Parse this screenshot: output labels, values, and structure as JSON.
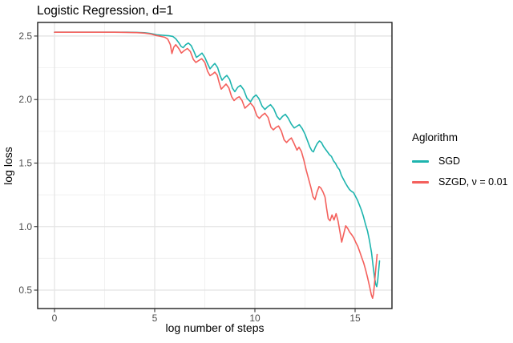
{
  "chart_data": {
    "type": "line",
    "title": "Logistic Regression, d=1",
    "xlabel": "log number of steps",
    "ylabel": "log loss",
    "xlim": [
      -0.84,
      16.84
    ],
    "ylim": [
      0.355,
      2.607
    ],
    "grid": true,
    "x_ticks": {
      "values": [
        0,
        5,
        10,
        15
      ],
      "labels": [
        "0",
        "5",
        "10",
        "15"
      ]
    },
    "y_ticks": {
      "values": [
        0.5,
        1.0,
        1.5,
        2.0,
        2.5
      ],
      "labels": [
        "0.5",
        "1.0",
        "1.5",
        "2.0",
        "2.5"
      ]
    },
    "x_minor": [
      2.5,
      7.5,
      12.5
    ],
    "y_minor": [
      0.75,
      1.25,
      1.75,
      2.25
    ],
    "legend": {
      "title": "Aglorithm",
      "position": "right"
    },
    "colors": {
      "background": "#ffffff",
      "panel_border": "#1f1f1f",
      "grid_major": "#e4e4e4",
      "grid_minor": "#f0f0f0",
      "tick": "#333333",
      "tick_label": "#4d4d4d",
      "text": "#000000"
    },
    "series": [
      {
        "name": "SGD",
        "color": "#1eb4ae",
        "points": [
          [
            0,
            2.53
          ],
          [
            0.6,
            2.53
          ],
          [
            1.2,
            2.53
          ],
          [
            1.8,
            2.53
          ],
          [
            2.4,
            2.53
          ],
          [
            3,
            2.53
          ],
          [
            3.6,
            2.53
          ],
          [
            4.1,
            2.529
          ],
          [
            4.5,
            2.526
          ],
          [
            4.8,
            2.52
          ],
          [
            5.1,
            2.51
          ],
          [
            5.4,
            2.506
          ],
          [
            5.7,
            2.502
          ],
          [
            5.9,
            2.497
          ],
          [
            6.05,
            2.478
          ],
          [
            6.2,
            2.448
          ],
          [
            6.32,
            2.418
          ],
          [
            6.42,
            2.408
          ],
          [
            6.55,
            2.432
          ],
          [
            6.68,
            2.445
          ],
          [
            6.82,
            2.425
          ],
          [
            6.96,
            2.378
          ],
          [
            7.08,
            2.332
          ],
          [
            7.22,
            2.348
          ],
          [
            7.36,
            2.366
          ],
          [
            7.5,
            2.332
          ],
          [
            7.64,
            2.282
          ],
          [
            7.76,
            2.242
          ],
          [
            7.9,
            2.268
          ],
          [
            8.0,
            2.284
          ],
          [
            8.14,
            2.252
          ],
          [
            8.26,
            2.19
          ],
          [
            8.36,
            2.152
          ],
          [
            8.48,
            2.174
          ],
          [
            8.6,
            2.19
          ],
          [
            8.74,
            2.158
          ],
          [
            8.88,
            2.09
          ],
          [
            9.0,
            2.062
          ],
          [
            9.14,
            2.096
          ],
          [
            9.28,
            2.112
          ],
          [
            9.44,
            2.078
          ],
          [
            9.6,
            2.012
          ],
          [
            9.78,
            1.982
          ],
          [
            9.92,
            2.018
          ],
          [
            10.06,
            2.036
          ],
          [
            10.2,
            2.008
          ],
          [
            10.36,
            1.948
          ],
          [
            10.5,
            1.922
          ],
          [
            10.64,
            1.944
          ],
          [
            10.78,
            1.96
          ],
          [
            10.94,
            1.928
          ],
          [
            11.1,
            1.868
          ],
          [
            11.24,
            1.842
          ],
          [
            11.38,
            1.868
          ],
          [
            11.52,
            1.884
          ],
          [
            11.66,
            1.854
          ],
          [
            11.82,
            1.806
          ],
          [
            11.96,
            1.776
          ],
          [
            12.1,
            1.79
          ],
          [
            12.22,
            1.802
          ],
          [
            12.36,
            1.772
          ],
          [
            12.5,
            1.728
          ],
          [
            12.62,
            1.678
          ],
          [
            12.74,
            1.628
          ],
          [
            12.84,
            1.598
          ],
          [
            12.92,
            1.588
          ],
          [
            13.02,
            1.626
          ],
          [
            13.12,
            1.656
          ],
          [
            13.22,
            1.674
          ],
          [
            13.32,
            1.662
          ],
          [
            13.42,
            1.632
          ],
          [
            13.52,
            1.61
          ],
          [
            13.62,
            1.588
          ],
          [
            13.72,
            1.566
          ],
          [
            13.82,
            1.552
          ],
          [
            13.92,
            1.518
          ],
          [
            14.02,
            1.498
          ],
          [
            14.12,
            1.468
          ],
          [
            14.22,
            1.448
          ],
          [
            14.32,
            1.402
          ],
          [
            14.42,
            1.372
          ],
          [
            14.52,
            1.342
          ],
          [
            14.62,
            1.316
          ],
          [
            14.72,
            1.292
          ],
          [
            14.82,
            1.278
          ],
          [
            14.92,
            1.268
          ],
          [
            15.02,
            1.238
          ],
          [
            15.12,
            1.208
          ],
          [
            15.22,
            1.168
          ],
          [
            15.32,
            1.128
          ],
          [
            15.42,
            1.078
          ],
          [
            15.52,
            1.018
          ],
          [
            15.62,
            0.965
          ],
          [
            15.72,
            0.888
          ],
          [
            15.82,
            0.795
          ],
          [
            15.9,
            0.688
          ],
          [
            15.97,
            0.598
          ],
          [
            16.03,
            0.545
          ],
          [
            16.08,
            0.527
          ],
          [
            16.13,
            0.575
          ],
          [
            16.18,
            0.662
          ],
          [
            16.22,
            0.73
          ]
        ]
      },
      {
        "name": "SZGD, ν = 0.01",
        "color": "#f4605c",
        "points": [
          [
            0,
            2.53
          ],
          [
            0.6,
            2.53
          ],
          [
            1.2,
            2.53
          ],
          [
            1.8,
            2.53
          ],
          [
            2.4,
            2.53
          ],
          [
            3,
            2.53
          ],
          [
            3.6,
            2.529
          ],
          [
            4.1,
            2.527
          ],
          [
            4.5,
            2.523
          ],
          [
            4.8,
            2.516
          ],
          [
            5.05,
            2.505
          ],
          [
            5.3,
            2.497
          ],
          [
            5.5,
            2.49
          ],
          [
            5.65,
            2.476
          ],
          [
            5.78,
            2.432
          ],
          [
            5.86,
            2.362
          ],
          [
            5.95,
            2.412
          ],
          [
            6.05,
            2.432
          ],
          [
            6.2,
            2.402
          ],
          [
            6.33,
            2.366
          ],
          [
            6.48,
            2.386
          ],
          [
            6.63,
            2.402
          ],
          [
            6.78,
            2.378
          ],
          [
            6.93,
            2.315
          ],
          [
            7.05,
            2.292
          ],
          [
            7.2,
            2.308
          ],
          [
            7.35,
            2.322
          ],
          [
            7.5,
            2.292
          ],
          [
            7.64,
            2.222
          ],
          [
            7.76,
            2.188
          ],
          [
            7.9,
            2.202
          ],
          [
            8.0,
            2.216
          ],
          [
            8.12,
            2.192
          ],
          [
            8.22,
            2.132
          ],
          [
            8.32,
            2.082
          ],
          [
            8.44,
            2.102
          ],
          [
            8.56,
            2.122
          ],
          [
            8.7,
            2.092
          ],
          [
            8.84,
            2.022
          ],
          [
            8.96,
            1.992
          ],
          [
            9.1,
            2.012
          ],
          [
            9.22,
            2.022
          ],
          [
            9.36,
            1.992
          ],
          [
            9.5,
            1.932
          ],
          [
            9.64,
            1.952
          ],
          [
            9.78,
            1.972
          ],
          [
            9.94,
            1.942
          ],
          [
            10.1,
            1.872
          ],
          [
            10.22,
            1.852
          ],
          [
            10.36,
            1.876
          ],
          [
            10.5,
            1.892
          ],
          [
            10.66,
            1.858
          ],
          [
            10.8,
            1.782
          ],
          [
            10.92,
            1.762
          ],
          [
            11.06,
            1.782
          ],
          [
            11.18,
            1.792
          ],
          [
            11.32,
            1.752
          ],
          [
            11.46,
            1.682
          ],
          [
            11.58,
            1.662
          ],
          [
            11.7,
            1.682
          ],
          [
            11.82,
            1.698
          ],
          [
            11.96,
            1.652
          ],
          [
            12.1,
            1.602
          ],
          [
            12.2,
            1.625
          ],
          [
            12.32,
            1.592
          ],
          [
            12.44,
            1.525
          ],
          [
            12.56,
            1.445
          ],
          [
            12.68,
            1.375
          ],
          [
            12.8,
            1.305
          ],
          [
            12.9,
            1.235
          ],
          [
            13.0,
            1.212
          ],
          [
            13.1,
            1.272
          ],
          [
            13.2,
            1.315
          ],
          [
            13.3,
            1.302
          ],
          [
            13.4,
            1.272
          ],
          [
            13.5,
            1.232
          ],
          [
            13.58,
            1.142
          ],
          [
            13.66,
            1.062
          ],
          [
            13.75,
            1.046
          ],
          [
            13.85,
            1.092
          ],
          [
            13.95,
            1.052
          ],
          [
            14.05,
            1.102
          ],
          [
            14.15,
            1.042
          ],
          [
            14.25,
            0.952
          ],
          [
            14.33,
            0.878
          ],
          [
            14.43,
            0.942
          ],
          [
            14.53,
            1.006
          ],
          [
            14.63,
            0.986
          ],
          [
            14.73,
            0.956
          ],
          [
            14.83,
            0.936
          ],
          [
            14.93,
            0.912
          ],
          [
            15.03,
            0.878
          ],
          [
            15.13,
            0.846
          ],
          [
            15.23,
            0.802
          ],
          [
            15.33,
            0.756
          ],
          [
            15.43,
            0.712
          ],
          [
            15.53,
            0.656
          ],
          [
            15.63,
            0.592
          ],
          [
            15.73,
            0.522
          ],
          [
            15.81,
            0.462
          ],
          [
            15.87,
            0.436
          ],
          [
            15.92,
            0.472
          ],
          [
            15.98,
            0.572
          ],
          [
            16.04,
            0.682
          ],
          [
            16.1,
            0.78
          ]
        ]
      }
    ]
  }
}
